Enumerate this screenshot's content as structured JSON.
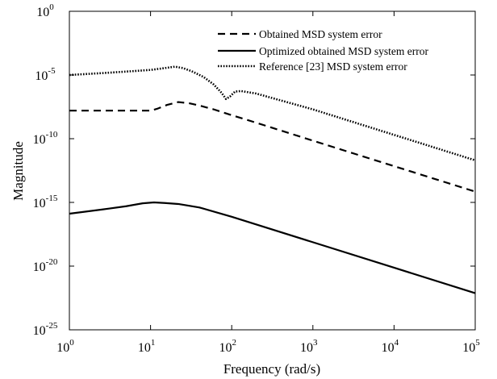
{
  "chart_data": {
    "type": "line",
    "title": "",
    "xlabel": "Frequency (rad/s)",
    "ylabel": "Magnitude",
    "x_scale": "log",
    "y_scale": "log",
    "xlim": [
      1,
      100000
    ],
    "ylim": [
      1e-25,
      1
    ],
    "grid": false,
    "legend_position": "top-right",
    "x_ticks": [
      {
        "base": "10",
        "exp": "0",
        "value": 1
      },
      {
        "base": "10",
        "exp": "1",
        "value": 10
      },
      {
        "base": "10",
        "exp": "2",
        "value": 100
      },
      {
        "base": "10",
        "exp": "3",
        "value": 1000
      },
      {
        "base": "10",
        "exp": "4",
        "value": 10000
      },
      {
        "base": "10",
        "exp": "5",
        "value": 100000
      }
    ],
    "y_ticks": [
      {
        "base": "10",
        "exp": "0",
        "value": 1
      },
      {
        "base": "10",
        "exp": "-5",
        "value": 1e-05
      },
      {
        "base": "10",
        "exp": "-10",
        "value": 1e-10
      },
      {
        "base": "10",
        "exp": "-15",
        "value": 1e-15
      },
      {
        "base": "10",
        "exp": "-20",
        "value": 1e-20
      },
      {
        "base": "10",
        "exp": "-25",
        "value": 1e-25
      }
    ],
    "series": [
      {
        "name": "Obtained MSD system error",
        "line_style": "dashed",
        "points": [
          [
            1,
            1.6e-08
          ],
          [
            10,
            1.6e-08
          ],
          [
            12,
            2.2e-08
          ],
          [
            16,
            4.5e-08
          ],
          [
            22,
            7.5e-08
          ],
          [
            30,
            6e-08
          ],
          [
            40,
            4e-08
          ],
          [
            60,
            2e-08
          ],
          [
            100,
            7e-09
          ],
          [
            200,
            1.8e-09
          ],
          [
            1000,
            7e-11
          ],
          [
            10000,
            7e-13
          ],
          [
            100000,
            7e-15
          ]
        ]
      },
      {
        "name": "Optimized obtained MSD system error",
        "line_style": "solid",
        "points": [
          [
            1,
            1.3e-16
          ],
          [
            3,
            3.2e-16
          ],
          [
            5,
            5e-16
          ],
          [
            8,
            8.5e-16
          ],
          [
            11,
            1e-15
          ],
          [
            15,
            9e-16
          ],
          [
            22,
            7.5e-16
          ],
          [
            40,
            4e-16
          ],
          [
            100,
            7.5e-17
          ],
          [
            1000,
            7.5e-19
          ],
          [
            10000,
            7.5e-21
          ],
          [
            100000,
            7.5e-23
          ]
        ]
      },
      {
        "name": "Reference [23] MSD system error",
        "line_style": "dotted",
        "points": [
          [
            1,
            1e-05
          ],
          [
            3,
            1.5e-05
          ],
          [
            6,
            2e-05
          ],
          [
            10,
            2.5e-05
          ],
          [
            15,
            3.5e-05
          ],
          [
            20,
            4.5e-05
          ],
          [
            25,
            3.5e-05
          ],
          [
            32,
            2e-05
          ],
          [
            45,
            7e-06
          ],
          [
            60,
            1.8e-06
          ],
          [
            75,
            4e-07
          ],
          [
            85,
            1.3e-07
          ],
          [
            95,
            2e-07
          ],
          [
            110,
            5e-07
          ],
          [
            130,
            5.5e-07
          ],
          [
            200,
            3.5e-07
          ],
          [
            1000,
            2e-08
          ],
          [
            10000,
            2e-10
          ],
          [
            100000,
            2e-12
          ]
        ]
      }
    ]
  }
}
